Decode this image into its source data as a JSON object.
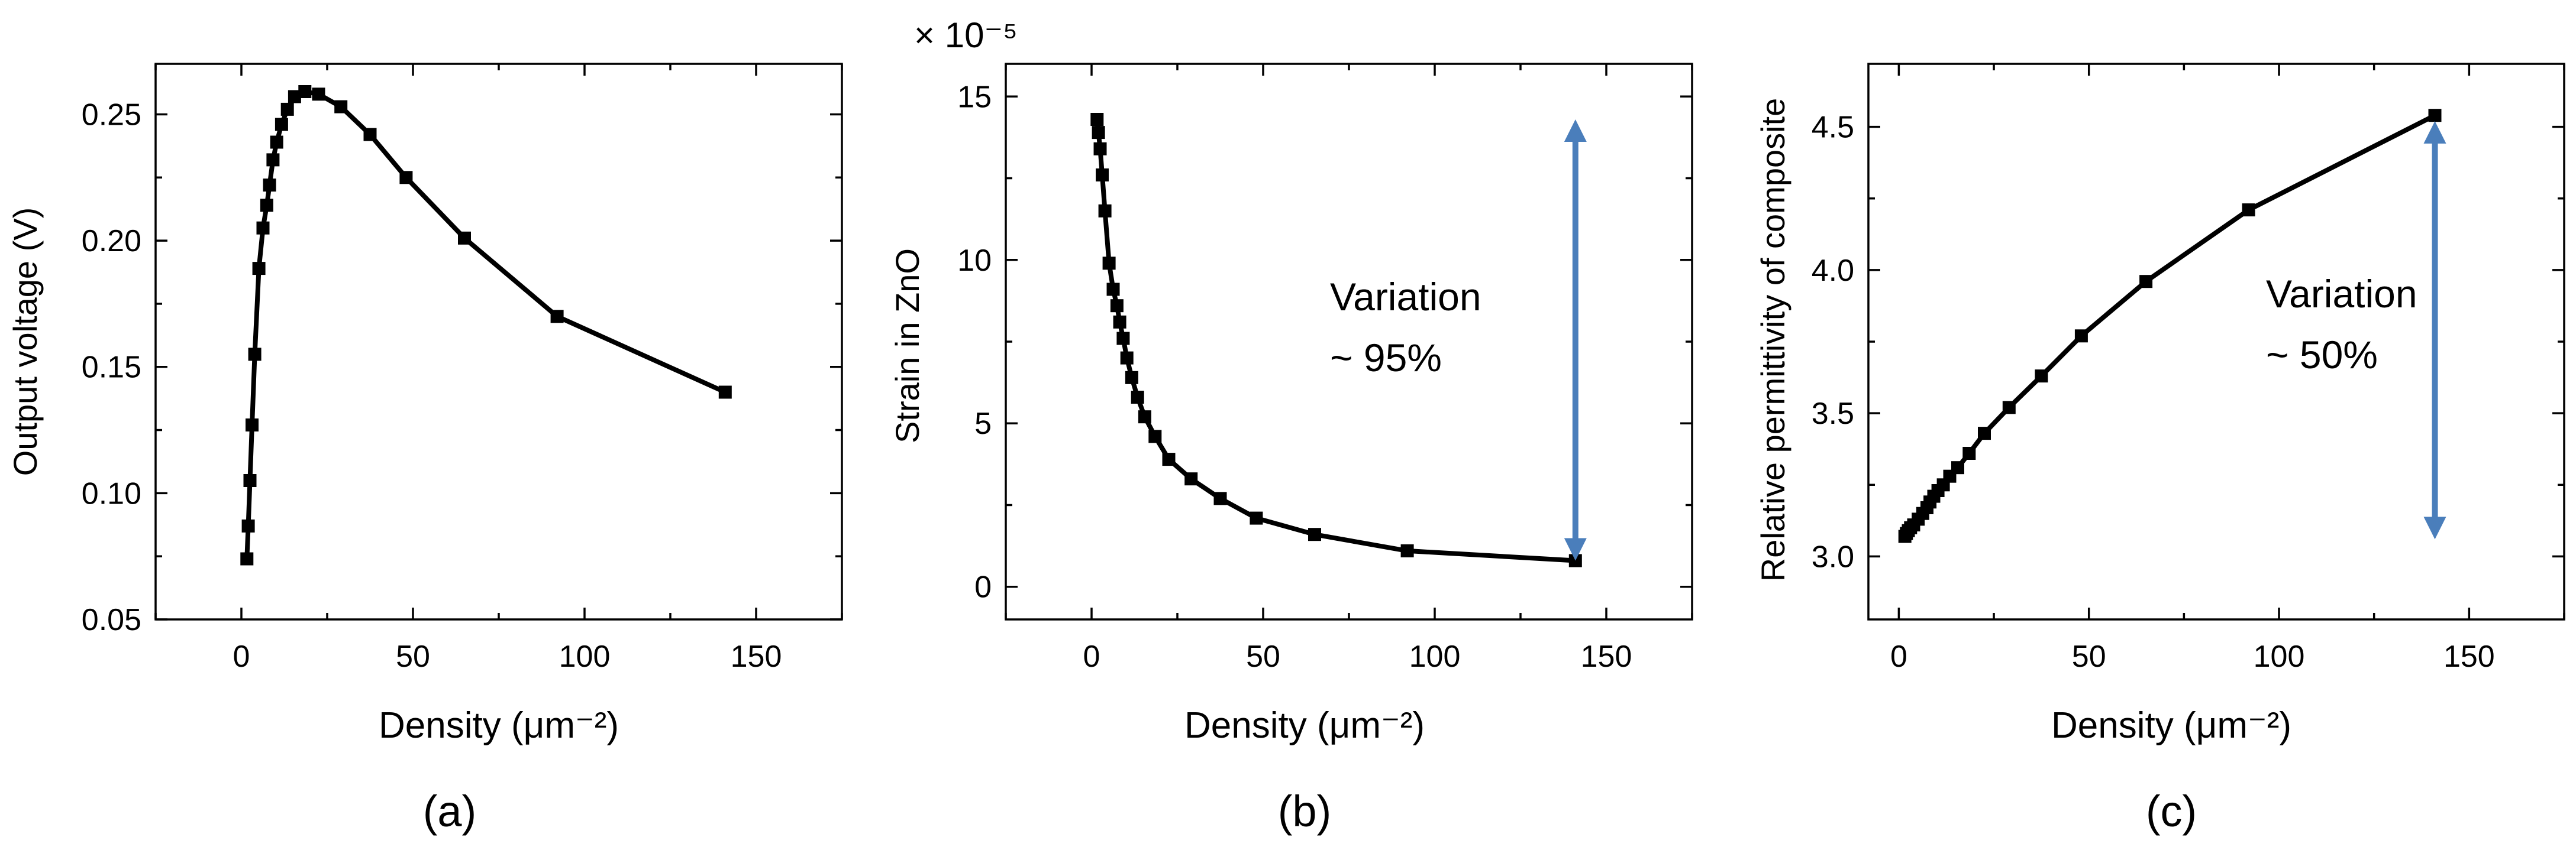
{
  "chart_data": [
    {
      "id": "a",
      "type": "line",
      "panel_label": "(a)",
      "xlabel": "Density (μm⁻²)",
      "ylabel": "Output voltage (V)",
      "xlim": [
        -25,
        175
      ],
      "ylim": [
        0.05,
        0.27
      ],
      "xticks": [
        0,
        50,
        100,
        150
      ],
      "xtick_labels": [
        "0",
        "50",
        "100",
        "150"
      ],
      "yticks": [
        0.05,
        0.1,
        0.15,
        0.2,
        0.25
      ],
      "ytick_labels": [
        "0.05",
        "0.10",
        "0.15",
        "0.20",
        "0.25"
      ],
      "marker": "square",
      "x": [
        1.6,
        2.0,
        2.5,
        3.1,
        3.9,
        5.1,
        6.3,
        7.4,
        8.2,
        9.2,
        10.3,
        11.7,
        13.4,
        15.5,
        18.5,
        22.5,
        29.0,
        37.5,
        48.0,
        65.0,
        92.0,
        141.0
      ],
      "y": [
        0.074,
        0.087,
        0.105,
        0.127,
        0.155,
        0.189,
        0.205,
        0.214,
        0.222,
        0.232,
        0.239,
        0.246,
        0.252,
        0.257,
        0.259,
        0.258,
        0.253,
        0.242,
        0.225,
        0.201,
        0.17,
        0.14
      ]
    },
    {
      "id": "b",
      "type": "line",
      "panel_label": "(b)",
      "xlabel": "Density (μm⁻²)",
      "ylabel": "Strain in ZnO",
      "multiplier": "× 10⁻⁵",
      "xlim": [
        -25,
        175
      ],
      "ylim": [
        -1,
        16
      ],
      "xticks": [
        0,
        50,
        100,
        150
      ],
      "xtick_labels": [
        "0",
        "50",
        "100",
        "150"
      ],
      "yticks": [
        0,
        5,
        10,
        15
      ],
      "ytick_labels": [
        "0",
        "5",
        "10",
        "15"
      ],
      "marker": "square",
      "x": [
        1.6,
        2.0,
        2.5,
        3.1,
        3.9,
        5.1,
        6.3,
        7.4,
        8.2,
        9.2,
        10.3,
        11.7,
        13.4,
        15.5,
        18.5,
        22.5,
        29.0,
        37.5,
        48.0,
        65.0,
        92.0,
        141.0
      ],
      "y": [
        14.3,
        13.9,
        13.4,
        12.6,
        11.5,
        9.9,
        9.1,
        8.6,
        8.1,
        7.6,
        7.0,
        6.4,
        5.8,
        5.2,
        4.6,
        3.9,
        3.3,
        2.7,
        2.1,
        1.6,
        1.1,
        0.8
      ],
      "annotation": [
        "Variation",
        "~ 95%"
      ],
      "arrow": {
        "x": 141,
        "y_from": 0.8,
        "y_to": 14.3
      }
    },
    {
      "id": "c",
      "type": "line",
      "panel_label": "(c)",
      "xlabel": "Density (μm⁻²)",
      "ylabel": "Relative permittivity of composite",
      "xlim": [
        -8,
        175
      ],
      "ylim": [
        2.78,
        4.72
      ],
      "xticks": [
        0,
        50,
        100,
        150
      ],
      "xtick_labels": [
        "0",
        "50",
        "100",
        "150"
      ],
      "yticks": [
        3.0,
        3.5,
        4.0,
        4.5
      ],
      "ytick_labels": [
        "3.0",
        "3.5",
        "4.0",
        "4.5"
      ],
      "marker": "square",
      "x": [
        1.6,
        2.0,
        2.5,
        3.1,
        3.9,
        5.1,
        6.3,
        7.4,
        8.2,
        9.2,
        10.3,
        11.7,
        13.4,
        15.5,
        18.5,
        22.5,
        29.0,
        37.5,
        48.0,
        65.0,
        92.0,
        141.0
      ],
      "y": [
        3.07,
        3.08,
        3.09,
        3.1,
        3.11,
        3.13,
        3.15,
        3.17,
        3.19,
        3.21,
        3.23,
        3.25,
        3.28,
        3.31,
        3.36,
        3.43,
        3.52,
        3.63,
        3.77,
        3.96,
        4.21,
        4.54
      ],
      "annotation": [
        "Variation",
        "~ 50%"
      ],
      "arrow": {
        "x": 141,
        "y_from": 3.06,
        "y_to": 4.52
      }
    }
  ]
}
